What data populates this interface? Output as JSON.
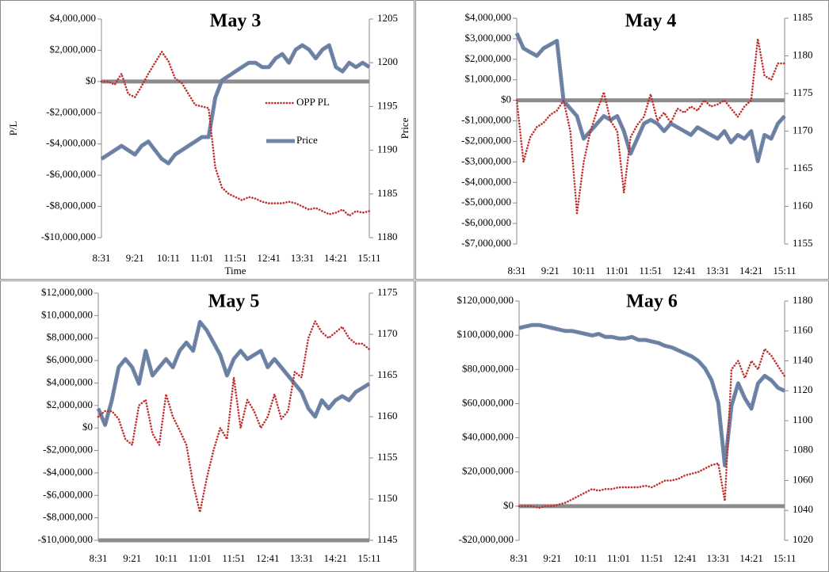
{
  "chart_data": [
    {
      "type": "line",
      "title": "May 3",
      "xlabel": "Time",
      "ylabel": "P/L",
      "y2label": "Price",
      "legend": "center-right",
      "x_axis_position": "zero",
      "categories": [
        "8:31",
        null,
        null,
        null,
        null,
        "9:21",
        null,
        null,
        null,
        null,
        "10:11",
        null,
        null,
        null,
        null,
        "11:01",
        null,
        null,
        null,
        null,
        "11:51",
        null,
        null,
        null,
        null,
        "12:41",
        null,
        null,
        null,
        null,
        "13:31",
        null,
        null,
        null,
        null,
        "14:21",
        null,
        null,
        null,
        null,
        "15:11"
      ],
      "ylim": [
        -10000000,
        4000000
      ],
      "yticks": [
        {
          "value": -10000000,
          "label": "-$10,000,000"
        },
        {
          "value": -8000000,
          "label": "-$8,000,000"
        },
        {
          "value": -6000000,
          "label": "-$6,000,000"
        },
        {
          "value": -4000000,
          "label": "-$4,000,000"
        },
        {
          "value": -2000000,
          "label": "-$2,000,000"
        },
        {
          "value": 0,
          "label": "$0"
        },
        {
          "value": 2000000,
          "label": "$2,000,000"
        },
        {
          "value": 4000000,
          "label": "$4,000,000"
        }
      ],
      "y2lim": [
        1180,
        1205
      ],
      "y2ticks": [
        1180,
        1185,
        1190,
        1195,
        1200,
        1205
      ],
      "series": [
        {
          "name": "OPP PL",
          "color": "#c0302c",
          "line_style": "dotted",
          "values": [
            0,
            0,
            -200000,
            500000,
            -800000,
            -1000000,
            -300000,
            500000,
            1200000,
            1900000,
            1300000,
            200000,
            -100000,
            -800000,
            -1500000,
            -1600000,
            -1700000,
            -5500000,
            -6800000,
            -7200000,
            -7400000,
            -7600000,
            -7400000,
            -7500000,
            -7700000,
            -7800000,
            -7800000,
            -7800000,
            -7700000,
            -7800000,
            -8000000,
            -8200000,
            -8100000,
            -8300000,
            -8500000,
            -8400000,
            -8200000,
            -8600000,
            -8300000,
            -8400000,
            -8300000
          ]
        },
        {
          "name": "Price",
          "color": "#7085a8",
          "line_style": "solid",
          "axis": "y2",
          "values": [
            1189,
            1189.5,
            1190,
            1190.5,
            1190,
            1189.5,
            1190.5,
            1191,
            1190,
            1189,
            1188.5,
            1189.5,
            1190,
            1190.5,
            1191,
            1191.5,
            1191.5,
            1196,
            1198,
            1198.5,
            1199,
            1199.5,
            1200,
            1200,
            1199.5,
            1199.5,
            1200.5,
            1201,
            1200,
            1201.5,
            1202,
            1201.5,
            1200.5,
            1201.5,
            1202,
            1199.5,
            1199,
            1200,
            1199.5,
            1200,
            1199.5
          ]
        }
      ]
    },
    {
      "type": "line",
      "title": "May 4",
      "x_axis_position": "zero",
      "categories": [
        "8:31",
        null,
        null,
        null,
        null,
        "9:21",
        null,
        null,
        null,
        null,
        "10:11",
        null,
        null,
        null,
        null,
        "11:01",
        null,
        null,
        null,
        null,
        "11:51",
        null,
        null,
        null,
        null,
        "12:41",
        null,
        null,
        null,
        null,
        "13:31",
        null,
        null,
        null,
        null,
        "14:21",
        null,
        null,
        null,
        null,
        "15:11"
      ],
      "ylim": [
        -7000000,
        4000000
      ],
      "yticks": [
        {
          "value": -7000000,
          "label": "-$7,000,000"
        },
        {
          "value": -6000000,
          "label": "-$6,000,000"
        },
        {
          "value": -5000000,
          "label": "-$5,000,000"
        },
        {
          "value": -4000000,
          "label": "-$4,000,000"
        },
        {
          "value": -3000000,
          "label": "-$3,000,000"
        },
        {
          "value": -2000000,
          "label": "-$2,000,000"
        },
        {
          "value": -1000000,
          "label": "-$1,000,000"
        },
        {
          "value": 0,
          "label": "$0"
        },
        {
          "value": 1000000,
          "label": "$1,000,000"
        },
        {
          "value": 2000000,
          "label": "$2,000,000"
        },
        {
          "value": 3000000,
          "label": "$3,000,000"
        },
        {
          "value": 4000000,
          "label": "$4,000,000"
        }
      ],
      "y2lim": [
        1155,
        1185
      ],
      "y2ticks": [
        1155,
        1160,
        1165,
        1170,
        1175,
        1180,
        1185
      ],
      "series": [
        {
          "color": "#c0302c",
          "line_style": "dotted",
          "values": [
            0,
            -3000000,
            -1800000,
            -1300000,
            -1100000,
            -700000,
            -500000,
            0,
            -1500000,
            -5500000,
            -3000000,
            -1500000,
            -500000,
            400000,
            -1000000,
            -1500000,
            -4500000,
            -1800000,
            -1200000,
            -800000,
            300000,
            -1000000,
            -600000,
            -1100000,
            -400000,
            -600000,
            -300000,
            -500000,
            0,
            -300000,
            -200000,
            0,
            -400000,
            -800000,
            -300000,
            0,
            3000000,
            1200000,
            1000000,
            1800000,
            1800000
          ]
        },
        {
          "color": "#7085a8",
          "line_style": "solid",
          "axis": "y2",
          "values": [
            1183,
            1181,
            1180.5,
            1180,
            1181,
            1181.5,
            1182,
            1174,
            1173,
            1172,
            1169,
            1170,
            1171,
            1172,
            1171.5,
            1172,
            1170,
            1167,
            1169,
            1171,
            1171.5,
            1171,
            1170,
            1171,
            1170.5,
            1170,
            1169.5,
            1170.5,
            1170,
            1169.5,
            1169,
            1170,
            1168.5,
            1169.5,
            1169,
            1170,
            1166,
            1169.5,
            1169,
            1171,
            1172
          ]
        }
      ]
    },
    {
      "type": "line",
      "title": "May 5",
      "x_axis_position": "bottom",
      "categories": [
        "8:31",
        null,
        null,
        null,
        null,
        "9:21",
        null,
        null,
        null,
        null,
        "10:11",
        null,
        null,
        null,
        null,
        "11:01",
        null,
        null,
        null,
        null,
        "11:51",
        null,
        null,
        null,
        null,
        "12:41",
        null,
        null,
        null,
        null,
        "13:31",
        null,
        null,
        null,
        null,
        "14:21",
        null,
        null,
        null,
        null,
        "15:11"
      ],
      "ylim": [
        -10000000,
        12000000
      ],
      "yticks": [
        {
          "value": -10000000,
          "label": "-$10,000,000"
        },
        {
          "value": -8000000,
          "label": "-$8,000,000"
        },
        {
          "value": -6000000,
          "label": "-$6,000,000"
        },
        {
          "value": -4000000,
          "label": "-$4,000,000"
        },
        {
          "value": -2000000,
          "label": "-$2,000,000"
        },
        {
          "value": 0,
          "label": "$0"
        },
        {
          "value": 2000000,
          "label": "$2,000,000"
        },
        {
          "value": 4000000,
          "label": "$4,000,000"
        },
        {
          "value": 6000000,
          "label": "$6,000,000"
        },
        {
          "value": 8000000,
          "label": "$8,000,000"
        },
        {
          "value": 10000000,
          "label": "$10,000,000"
        },
        {
          "value": 12000000,
          "label": "$12,000,000"
        }
      ],
      "y2lim": [
        1145,
        1175
      ],
      "y2ticks": [
        1145,
        1150,
        1155,
        1160,
        1165,
        1170,
        1175
      ],
      "series": [
        {
          "color": "#c0302c",
          "line_style": "dotted",
          "values": [
            1000000,
            1500000,
            1500000,
            800000,
            -1000000,
            -1500000,
            2000000,
            2500000,
            -500000,
            -1500000,
            3000000,
            1000000,
            -200000,
            -1500000,
            -5000000,
            -7500000,
            -4500000,
            -2000000,
            0,
            -1000000,
            4500000,
            0,
            2500000,
            1500000,
            0,
            1000000,
            3000000,
            800000,
            1500000,
            5000000,
            4500000,
            8000000,
            9500000,
            8500000,
            8000000,
            8500000,
            9000000,
            8000000,
            7500000,
            7500000,
            7000000
          ]
        },
        {
          "color": "#7085a8",
          "line_style": "solid",
          "axis": "y2",
          "values": [
            1161,
            1159,
            1162,
            1166,
            1167,
            1166,
            1164,
            1168,
            1165,
            1166,
            1167,
            1166,
            1168,
            1169,
            1168,
            1171.5,
            1170.5,
            1169,
            1167.5,
            1165,
            1167,
            1168,
            1167,
            1167.5,
            1168,
            1166,
            1167,
            1166,
            1165,
            1164,
            1163,
            1161,
            1160,
            1162,
            1161,
            1162,
            1162.5,
            1162,
            1163,
            1163.5,
            1164
          ]
        }
      ]
    },
    {
      "type": "line",
      "title": "May 6",
      "x_axis_position": "zero",
      "categories": [
        "8:31",
        null,
        null,
        null,
        null,
        "9:21",
        null,
        null,
        null,
        null,
        "10:11",
        null,
        null,
        null,
        null,
        "11:01",
        null,
        null,
        null,
        null,
        "11:51",
        null,
        null,
        null,
        null,
        "12:41",
        null,
        null,
        null,
        null,
        "13:31",
        null,
        null,
        null,
        null,
        "14:21",
        null,
        null,
        null,
        null,
        "15:11"
      ],
      "ylim": [
        -20000000,
        120000000
      ],
      "yticks": [
        {
          "value": -20000000,
          "label": "-$20,000,000"
        },
        {
          "value": 0,
          "label": "$0"
        },
        {
          "value": 20000000,
          "label": "$20,000,000"
        },
        {
          "value": 40000000,
          "label": "$40,000,000"
        },
        {
          "value": 60000000,
          "label": "$60,000,000"
        },
        {
          "value": 80000000,
          "label": "$80,000,000"
        },
        {
          "value": 100000000,
          "label": "$100,000,000"
        },
        {
          "value": 120000000,
          "label": "$120,000,000"
        }
      ],
      "y2lim": [
        1020,
        1180
      ],
      "y2ticks": [
        1020,
        1040,
        1060,
        1080,
        1100,
        1120,
        1140,
        1160,
        1180
      ],
      "series": [
        {
          "color": "#c0302c",
          "line_style": "dotted",
          "values": [
            0,
            0,
            0,
            -1000000,
            0,
            0,
            1000000,
            2000000,
            4000000,
            6000000,
            8000000,
            10000000,
            9000000,
            10000000,
            10000000,
            11000000,
            11000000,
            11000000,
            11000000,
            12000000,
            11000000,
            13000000,
            15000000,
            15000000,
            16000000,
            18000000,
            19000000,
            20000000,
            22000000,
            24000000,
            25000000,
            3000000,
            80000000,
            85000000,
            75000000,
            85000000,
            80000000,
            92000000,
            88000000,
            82000000,
            76000000
          ]
        },
        {
          "color": "#7085a8",
          "line_style": "solid",
          "axis": "y2",
          "values": [
            1162,
            1163,
            1164,
            1164,
            1163,
            1162,
            1161,
            1160,
            1160,
            1159,
            1158,
            1157,
            1158,
            1156,
            1156,
            1155,
            1155,
            1156,
            1154,
            1154,
            1153,
            1152,
            1150,
            1149,
            1147,
            1145,
            1143,
            1140,
            1135,
            1127,
            1112,
            1070,
            1110,
            1125,
            1115,
            1108,
            1125,
            1130,
            1127,
            1122,
            1120
          ]
        }
      ]
    }
  ]
}
